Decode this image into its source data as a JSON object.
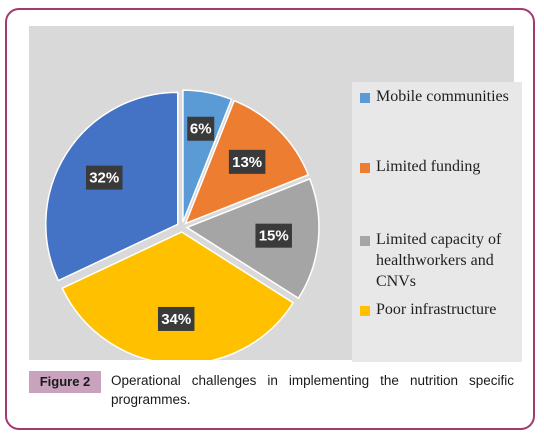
{
  "chart_data": {
    "type": "pie",
    "slices": [
      {
        "label": "Mobile communities",
        "value": 6,
        "display": "6%",
        "color": "#5b9bd5"
      },
      {
        "label": "Limited funding",
        "value": 13,
        "display": "13%",
        "color": "#ed7d31"
      },
      {
        "label": "Limited capacity of healthworkers and CNVs",
        "value": 15,
        "display": "15%",
        "color": "#a5a5a5"
      },
      {
        "label": "Poor infrastructure",
        "value": 34,
        "display": "34%",
        "color": "#ffc000"
      },
      {
        "label": "",
        "value": 32,
        "display": "32%",
        "color": "#4472c4"
      }
    ],
    "legend": {
      "placement": "right",
      "entries": [
        {
          "text": "Mobile communities",
          "color": "#5b9bd5"
        },
        {
          "text": "Limited funding",
          "color": "#ed7d31"
        },
        {
          "text": "Limited capacity of healthworkers and CNVs",
          "color": "#a5a5a5"
        },
        {
          "text": "Poor infrastructure",
          "color": "#ffc000"
        }
      ]
    },
    "background_color": "#d9d9d9"
  },
  "caption": {
    "label": "Figure 2",
    "text": "Operational challenges in implementing the nutrition specific programmes."
  },
  "colors": {
    "frame_border": "#a13a6e",
    "figure_label_bg": "#c9a3bd",
    "data_label_box": "#3a3a3a"
  }
}
